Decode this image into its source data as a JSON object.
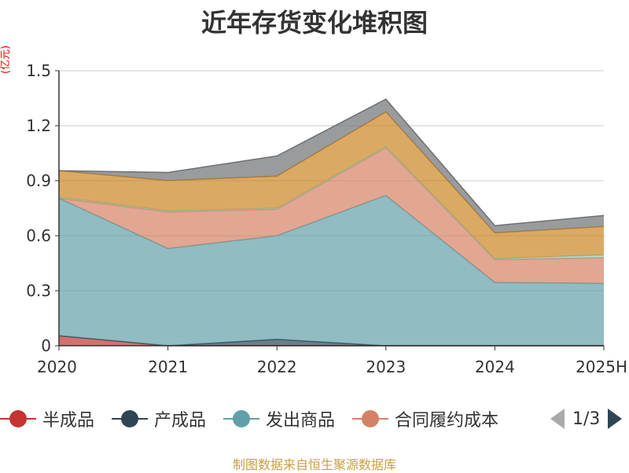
{
  "title": "近年存货变化堆积图",
  "unit_label": "(亿元)",
  "source": "制图数据来自恒生聚源数据库",
  "legend": {
    "items": [
      {
        "label": "半成品",
        "color": "#c23531"
      },
      {
        "label": "产成品",
        "color": "#2f4554"
      },
      {
        "label": "发出商品",
        "color": "#61a0a8"
      },
      {
        "label": "合同履约成本",
        "color": "#d48265"
      }
    ],
    "page_text": "1/3"
  },
  "chart_data": {
    "type": "area",
    "stacked": true,
    "categories": [
      "2020",
      "2021",
      "2022",
      "2023",
      "2024",
      "2025H"
    ],
    "ylim": [
      0,
      1.5
    ],
    "yticks": [
      "0",
      "0.3",
      "0.6",
      "0.9",
      "1.2",
      "1.5"
    ],
    "grid": true,
    "series": [
      {
        "name": "半成品",
        "color": "#c23531",
        "values": [
          0.055,
          0.0,
          0.0,
          0.0,
          0.0,
          0.0
        ]
      },
      {
        "name": "产成品",
        "color": "#2f4554",
        "values": [
          0.0,
          0.0,
          0.035,
          0.0,
          0.0,
          0.0
        ]
      },
      {
        "name": "发出商品",
        "color": "#61a0a8",
        "values": [
          0.75,
          0.53,
          0.565,
          0.82,
          0.345,
          0.34
        ]
      },
      {
        "name": "合同履约成本",
        "color": "#d48265",
        "values": [
          0.0,
          0.2,
          0.145,
          0.26,
          0.125,
          0.14
        ]
      },
      {
        "color": "#91c7ae",
        "values": [
          0.005,
          0.005,
          0.005,
          0.005,
          0.005,
          0.015
        ]
      },
      {
        "color": "#ca8622",
        "values": [
          0.145,
          0.165,
          0.175,
          0.19,
          0.14,
          0.155
        ]
      },
      {
        "color": "#6e7074",
        "values": [
          0.0,
          0.045,
          0.11,
          0.07,
          0.04,
          0.06
        ]
      }
    ]
  }
}
